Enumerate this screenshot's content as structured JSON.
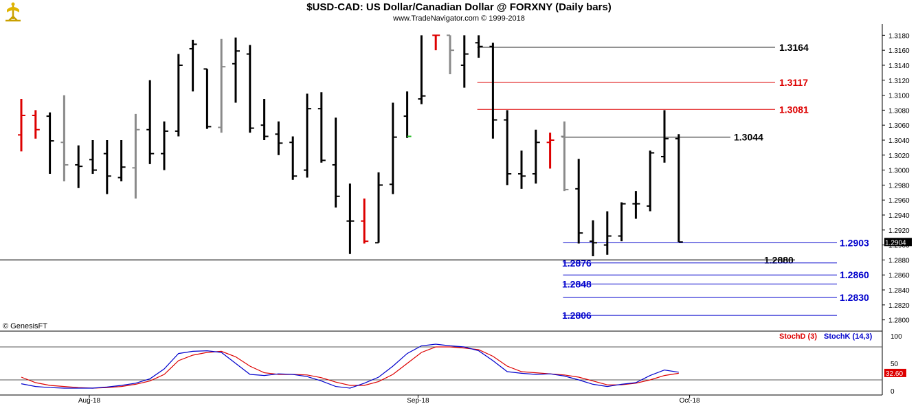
{
  "header": {
    "title": "$USD-CAD:  US Dollar/Canadian Dollar @ FORXNY  (Daily bars)",
    "subtitle": "www.TradeNavigator.com © 1999-2018",
    "copyright": "© GenesisFT"
  },
  "colors": {
    "up": "#000000",
    "down": "#dd0000",
    "neutral": "#8a8a8a",
    "blue": "#0000cc",
    "stochD": "#dd0000",
    "stochK": "#0000cc"
  },
  "chart_data": {
    "type": "ohlc",
    "instrument": "$USD-CAD",
    "price_axis": {
      "min": 1.2785,
      "max": 1.3195,
      "ticks": [
        "1.2800",
        "1.2820",
        "1.2840",
        "1.2860",
        "1.2880",
        "1.2900",
        "1.2920",
        "1.2940",
        "1.2960",
        "1.2980",
        "1.3000",
        "1.3020",
        "1.3040",
        "1.3060",
        "1.3080",
        "1.3100",
        "1.3120",
        "1.3140",
        "1.3160",
        "1.3180"
      ]
    },
    "last_price": "1.2904",
    "x_labels": [
      {
        "text": "Aug-18",
        "bar": 5
      },
      {
        "text": "Sep-18",
        "bar": 28
      },
      {
        "text": "Oct-18",
        "bar": 47
      }
    ],
    "bars": [
      {
        "o": 1.3047,
        "h": 1.3095,
        "l": 1.3025,
        "c": 1.3073,
        "col": "down"
      },
      {
        "o": 1.3073,
        "h": 1.308,
        "l": 1.3042,
        "c": 1.3054,
        "col": "down"
      },
      {
        "o": 1.3072,
        "h": 1.3077,
        "l": 1.2995,
        "c": 1.3039,
        "col": "up"
      },
      {
        "o": 1.3037,
        "h": 1.31,
        "l": 1.2985,
        "c": 1.3007,
        "col": "neutral"
      },
      {
        "o": 1.3007,
        "h": 1.3033,
        "l": 1.2976,
        "c": 1.3005,
        "col": "up"
      },
      {
        "o": 1.3014,
        "h": 1.304,
        "l": 1.2995,
        "c": 1.3,
        "col": "up"
      },
      {
        "o": 1.3022,
        "h": 1.304,
        "l": 1.2968,
        "c": 1.2992,
        "col": "up"
      },
      {
        "o": 1.299,
        "h": 1.304,
        "l": 1.2985,
        "c": 1.3004,
        "col": "up"
      },
      {
        "o": 1.3003,
        "h": 1.3075,
        "l": 1.2962,
        "c": 1.3054,
        "col": "neutral"
      },
      {
        "o": 1.3054,
        "h": 1.312,
        "l": 1.3008,
        "c": 1.3022,
        "col": "up"
      },
      {
        "o": 1.3022,
        "h": 1.3065,
        "l": 1.3,
        "c": 1.3052,
        "col": "up"
      },
      {
        "o": 1.3052,
        "h": 1.3155,
        "l": 1.3045,
        "c": 1.314,
        "col": "up"
      },
      {
        "o": 1.3162,
        "h": 1.3174,
        "l": 1.3105,
        "c": 1.3168,
        "col": "up"
      },
      {
        "o": 1.3135,
        "h": 1.3135,
        "l": 1.3055,
        "c": 1.3058,
        "col": "up"
      },
      {
        "o": 1.3057,
        "h": 1.3175,
        "l": 1.305,
        "c": 1.3138,
        "col": "neutral"
      },
      {
        "o": 1.3142,
        "h": 1.3177,
        "l": 1.309,
        "c": 1.3159,
        "col": "up"
      },
      {
        "o": 1.3155,
        "h": 1.3167,
        "l": 1.305,
        "c": 1.3056,
        "col": "up"
      },
      {
        "o": 1.306,
        "h": 1.3095,
        "l": 1.304,
        "c": 1.3045,
        "col": "up"
      },
      {
        "o": 1.3048,
        "h": 1.3065,
        "l": 1.302,
        "c": 1.3036,
        "col": "up"
      },
      {
        "o": 1.3037,
        "h": 1.3045,
        "l": 1.2987,
        "c": 1.2992,
        "col": "up"
      },
      {
        "o": 1.3,
        "h": 1.3102,
        "l": 1.299,
        "c": 1.3082,
        "col": "up"
      },
      {
        "o": 1.3082,
        "h": 1.3104,
        "l": 1.301,
        "c": 1.3013,
        "col": "up"
      },
      {
        "o": 1.3007,
        "h": 1.307,
        "l": 1.295,
        "c": 1.2965,
        "col": "up"
      },
      {
        "o": 1.2932,
        "h": 1.2982,
        "l": 1.2888,
        "c": 1.2932,
        "col": "up"
      },
      {
        "o": 1.2932,
        "h": 1.2962,
        "l": 1.2902,
        "c": 1.2905,
        "col": "down"
      },
      {
        "o": 1.2903,
        "h": 1.2997,
        "l": 1.2903,
        "c": 1.298,
        "col": "up"
      },
      {
        "o": 1.2981,
        "h": 1.309,
        "l": 1.2968,
        "c": 1.3044,
        "col": "up"
      },
      {
        "o": 1.3072,
        "h": 1.3105,
        "l": 1.3043,
        "c": 1.3045,
        "col": "green"
      },
      {
        "o": 1.3095,
        "h": 1.318,
        "l": 1.3088,
        "c": 1.3099,
        "col": "up"
      },
      {
        "o": 1.318,
        "h": 1.318,
        "l": 1.316,
        "c": 1.318,
        "col": "down"
      },
      {
        "o": 1.318,
        "h": 1.318,
        "l": 1.3128,
        "c": 1.316,
        "col": "neutral"
      },
      {
        "o": 1.314,
        "h": 1.318,
        "l": 1.311,
        "c": 1.3155,
        "col": "up"
      },
      {
        "o": 1.317,
        "h": 1.318,
        "l": 1.315,
        "c": 1.3165,
        "col": "up"
      },
      {
        "o": 1.3165,
        "h": 1.317,
        "l": 1.3042,
        "c": 1.3067,
        "col": "up"
      },
      {
        "o": 1.3067,
        "h": 1.308,
        "l": 1.298,
        "c": 1.2995,
        "col": "up"
      },
      {
        "o": 1.2995,
        "h": 1.3026,
        "l": 1.2975,
        "c": 1.2992,
        "col": "up"
      },
      {
        "o": 1.2995,
        "h": 1.3054,
        "l": 1.2982,
        "c": 1.3037,
        "col": "up"
      },
      {
        "o": 1.3037,
        "h": 1.305,
        "l": 1.3002,
        "c": 1.304,
        "col": "down"
      },
      {
        "o": 1.3045,
        "h": 1.3065,
        "l": 1.2972,
        "c": 1.2974,
        "col": "neutral"
      },
      {
        "o": 1.2975,
        "h": 1.3015,
        "l": 1.2902,
        "c": 1.2916,
        "col": "up"
      },
      {
        "o": 1.2905,
        "h": 1.2933,
        "l": 1.2885,
        "c": 1.2903,
        "col": "up"
      },
      {
        "o": 1.29,
        "h": 1.2945,
        "l": 1.2887,
        "c": 1.2912,
        "col": "up"
      },
      {
        "o": 1.2912,
        "h": 1.2957,
        "l": 1.2905,
        "c": 1.2955,
        "col": "up"
      },
      {
        "o": 1.2955,
        "h": 1.2972,
        "l": 1.2935,
        "c": 1.2955,
        "col": "up"
      },
      {
        "o": 1.2952,
        "h": 1.3026,
        "l": 1.2945,
        "c": 1.3023,
        "col": "up"
      },
      {
        "o": 1.3018,
        "h": 1.308,
        "l": 1.301,
        "c": 1.3042,
        "col": "up"
      },
      {
        "o": 1.3042,
        "h": 1.3048,
        "l": 1.2904,
        "c": 1.2904,
        "col": "up"
      }
    ],
    "levels": [
      {
        "label": "1.3164",
        "value": 1.3164,
        "color": "#000000",
        "from_bar": 32,
        "labelSide": "right"
      },
      {
        "label": "1.3117",
        "value": 1.3117,
        "color": "#dd0000",
        "from_bar": 32,
        "labelSide": "right"
      },
      {
        "label": "1.3081",
        "value": 1.3081,
        "color": "#dd0000",
        "from_bar": 32,
        "labelSide": "right"
      },
      {
        "label": "1.3044",
        "value": 1.3044,
        "color": "#000000",
        "from_bar": 38,
        "labelSide": "right2"
      },
      {
        "label": "1.2903",
        "value": 1.2903,
        "color": "#0000cc",
        "from_bar": 38,
        "labelSide": "far"
      },
      {
        "label": "1.2880",
        "value": 1.288,
        "color": "#000000",
        "from_bar": -1,
        "labelSide": "mid"
      },
      {
        "label": "1.2876",
        "value": 1.2876,
        "color": "#0000cc",
        "from_bar": 38,
        "labelSide": "left"
      },
      {
        "label": "1.2860",
        "value": 1.286,
        "color": "#0000cc",
        "from_bar": 38,
        "labelSide": "far"
      },
      {
        "label": "1.2848",
        "value": 1.2848,
        "color": "#0000cc",
        "from_bar": 38,
        "labelSide": "left"
      },
      {
        "label": "1.2830",
        "value": 1.283,
        "color": "#0000cc",
        "from_bar": 38,
        "labelSide": "far"
      },
      {
        "label": "1.2806",
        "value": 1.2806,
        "color": "#0000cc",
        "from_bar": 38,
        "labelSide": "left"
      }
    ],
    "stochastic": {
      "labels": {
        "d": "StochD (3)",
        "k": "StochK (14,3)"
      },
      "axis": {
        "min": 0,
        "max": 100,
        "ticks": [
          "100",
          "50",
          "0"
        ]
      },
      "reference_lines": [
        80,
        20
      ],
      "last_value": "32.60",
      "k": [
        13,
        8,
        6,
        5,
        5,
        5,
        7,
        10,
        14,
        22,
        40,
        68,
        72,
        73,
        70,
        50,
        30,
        28,
        31,
        30,
        26,
        18,
        8,
        5,
        14,
        25,
        45,
        68,
        82,
        85,
        82,
        80,
        73,
        55,
        35,
        32,
        30,
        31,
        27,
        20,
        12,
        8,
        12,
        15,
        28,
        38,
        34
      ],
      "d": [
        25,
        15,
        10,
        8,
        6,
        5,
        6,
        8,
        12,
        18,
        30,
        55,
        65,
        70,
        72,
        62,
        45,
        33,
        30,
        30,
        29,
        24,
        16,
        10,
        10,
        17,
        30,
        50,
        70,
        80,
        80,
        78,
        75,
        63,
        45,
        35,
        33,
        31,
        29,
        25,
        18,
        11,
        11,
        14,
        20,
        28,
        32
      ]
    }
  }
}
